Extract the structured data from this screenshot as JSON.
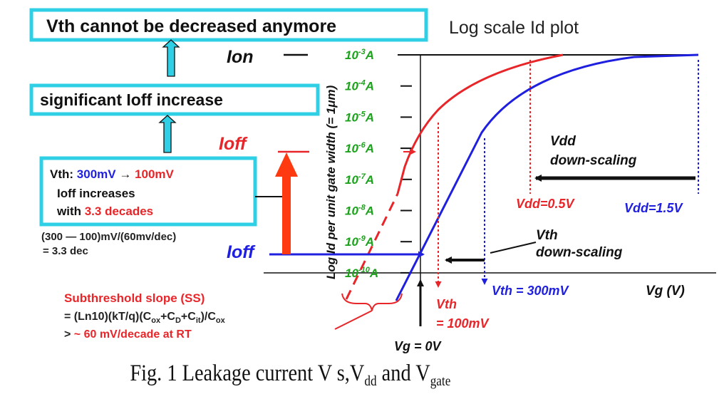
{
  "colors": {
    "box_border": "#2fd0e6",
    "red": "#e8262a",
    "blue": "#1f1fe0",
    "green": "#1aa31a",
    "orange_arrow": "#ff3a10",
    "text": "#222222"
  },
  "flow": {
    "box1": "Vth cannot be decreased anymore",
    "box2": "significant Ioff increase",
    "box3_line1_prefix": "Vth: ",
    "box3_line1_from": "300mV",
    "box3_line1_arrow": " → ",
    "box3_line1_to": "100mV",
    "box3_line2": "Ioff increases",
    "box3_line3_prefix": "with ",
    "box3_line3_value": "3.3 decades",
    "calc_line1": "(300 — 100)mV/(60mv/dec)",
    "calc_line2": "= 3.3 dec"
  },
  "labels": {
    "plot_title": "Log scale Id plot",
    "ion": "Ion",
    "ioff_high": "Ioff",
    "ioff_low": "Ioff",
    "y_axis": "Log Id per unit gate width (= 1μm)",
    "x_axis": "Vg (V)",
    "vdd_scaling_1": "Vdd",
    "vdd_scaling_2": "down-scaling",
    "vdd_low": "Vdd=0.5V",
    "vdd_high": "Vdd=1.5V",
    "vth_scaling_1": "Vth",
    "vth_scaling_2": "down-scaling",
    "vth_high": "Vth = 300mV",
    "vth_low_1": "Vth",
    "vth_low_2": "= 100mV",
    "vg_zero": "Vg = 0V"
  },
  "y_ticks": [
    {
      "base": "10",
      "exp": "-3",
      "unit": "A"
    },
    {
      "base": "10",
      "exp": "-4",
      "unit": "A"
    },
    {
      "base": "10",
      "exp": "-5",
      "unit": "A"
    },
    {
      "base": "10",
      "exp": "-6",
      "unit": "A"
    },
    {
      "base": "10",
      "exp": "-7",
      "unit": "A"
    },
    {
      "base": "10",
      "exp": "-8",
      "unit": "A"
    },
    {
      "base": "10",
      "exp": "-9",
      "unit": "A"
    },
    {
      "base": "10",
      "exp": "-10",
      "unit": "A"
    }
  ],
  "ss": {
    "title": "Subthreshold slope (SS)",
    "formula_a": "= (Ln10)(kT/q)(C",
    "sub_ox": "ox",
    "plus_c": "+C",
    "sub_d": "D",
    "sub_it": "it",
    "close_div": ")/C",
    "line3_a": "> ",
    "line3_b": "~ 60 mV/decade at RT"
  },
  "caption": {
    "prefix": "Fig. 1 Leakage current V s,V",
    "sub1": "dd",
    "mid": " and V",
    "sub2": "gate"
  }
}
